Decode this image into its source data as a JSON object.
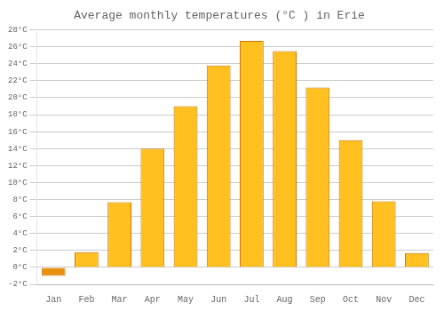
{
  "chart_data": {
    "type": "bar",
    "title": "Average monthly temperatures (°C ) in Erie",
    "categories": [
      "Jan",
      "Feb",
      "Mar",
      "Apr",
      "May",
      "Jun",
      "Jul",
      "Aug",
      "Sep",
      "Oct",
      "Nov",
      "Dec"
    ],
    "values": [
      -1.0,
      1.8,
      7.7,
      14.0,
      19.0,
      23.8,
      26.7,
      25.5,
      21.2,
      15.0,
      7.8,
      1.7
    ],
    "colors": [
      "#E89010",
      "#FFC020",
      "#FFC020",
      "#FFC020",
      "#FFC020",
      "#FFC020",
      "#FFC020",
      "#FFC020",
      "#FFC020",
      "#FFC020",
      "#FFC020",
      "#FFC020"
    ],
    "ylim": [
      -2,
      28
    ],
    "yticks": [
      {
        "value": -2,
        "label": "-2°C"
      },
      {
        "value": 0,
        "label": "0°C"
      },
      {
        "value": 2,
        "label": "2°C"
      },
      {
        "value": 4,
        "label": "4°C"
      },
      {
        "value": 6,
        "label": "6°C"
      },
      {
        "value": 8,
        "label": "8°C"
      },
      {
        "value": 10,
        "label": "10°C"
      },
      {
        "value": 12,
        "label": "12°C"
      },
      {
        "value": 14,
        "label": "14°C"
      },
      {
        "value": 16,
        "label": "16°C"
      },
      {
        "value": 18,
        "label": "18°C"
      },
      {
        "value": 20,
        "label": "20°C"
      },
      {
        "value": 22,
        "label": "22°C"
      },
      {
        "value": 24,
        "label": "24°C"
      },
      {
        "value": 26,
        "label": "26°C"
      },
      {
        "value": 28,
        "label": "28°C"
      }
    ],
    "grid": true
  }
}
